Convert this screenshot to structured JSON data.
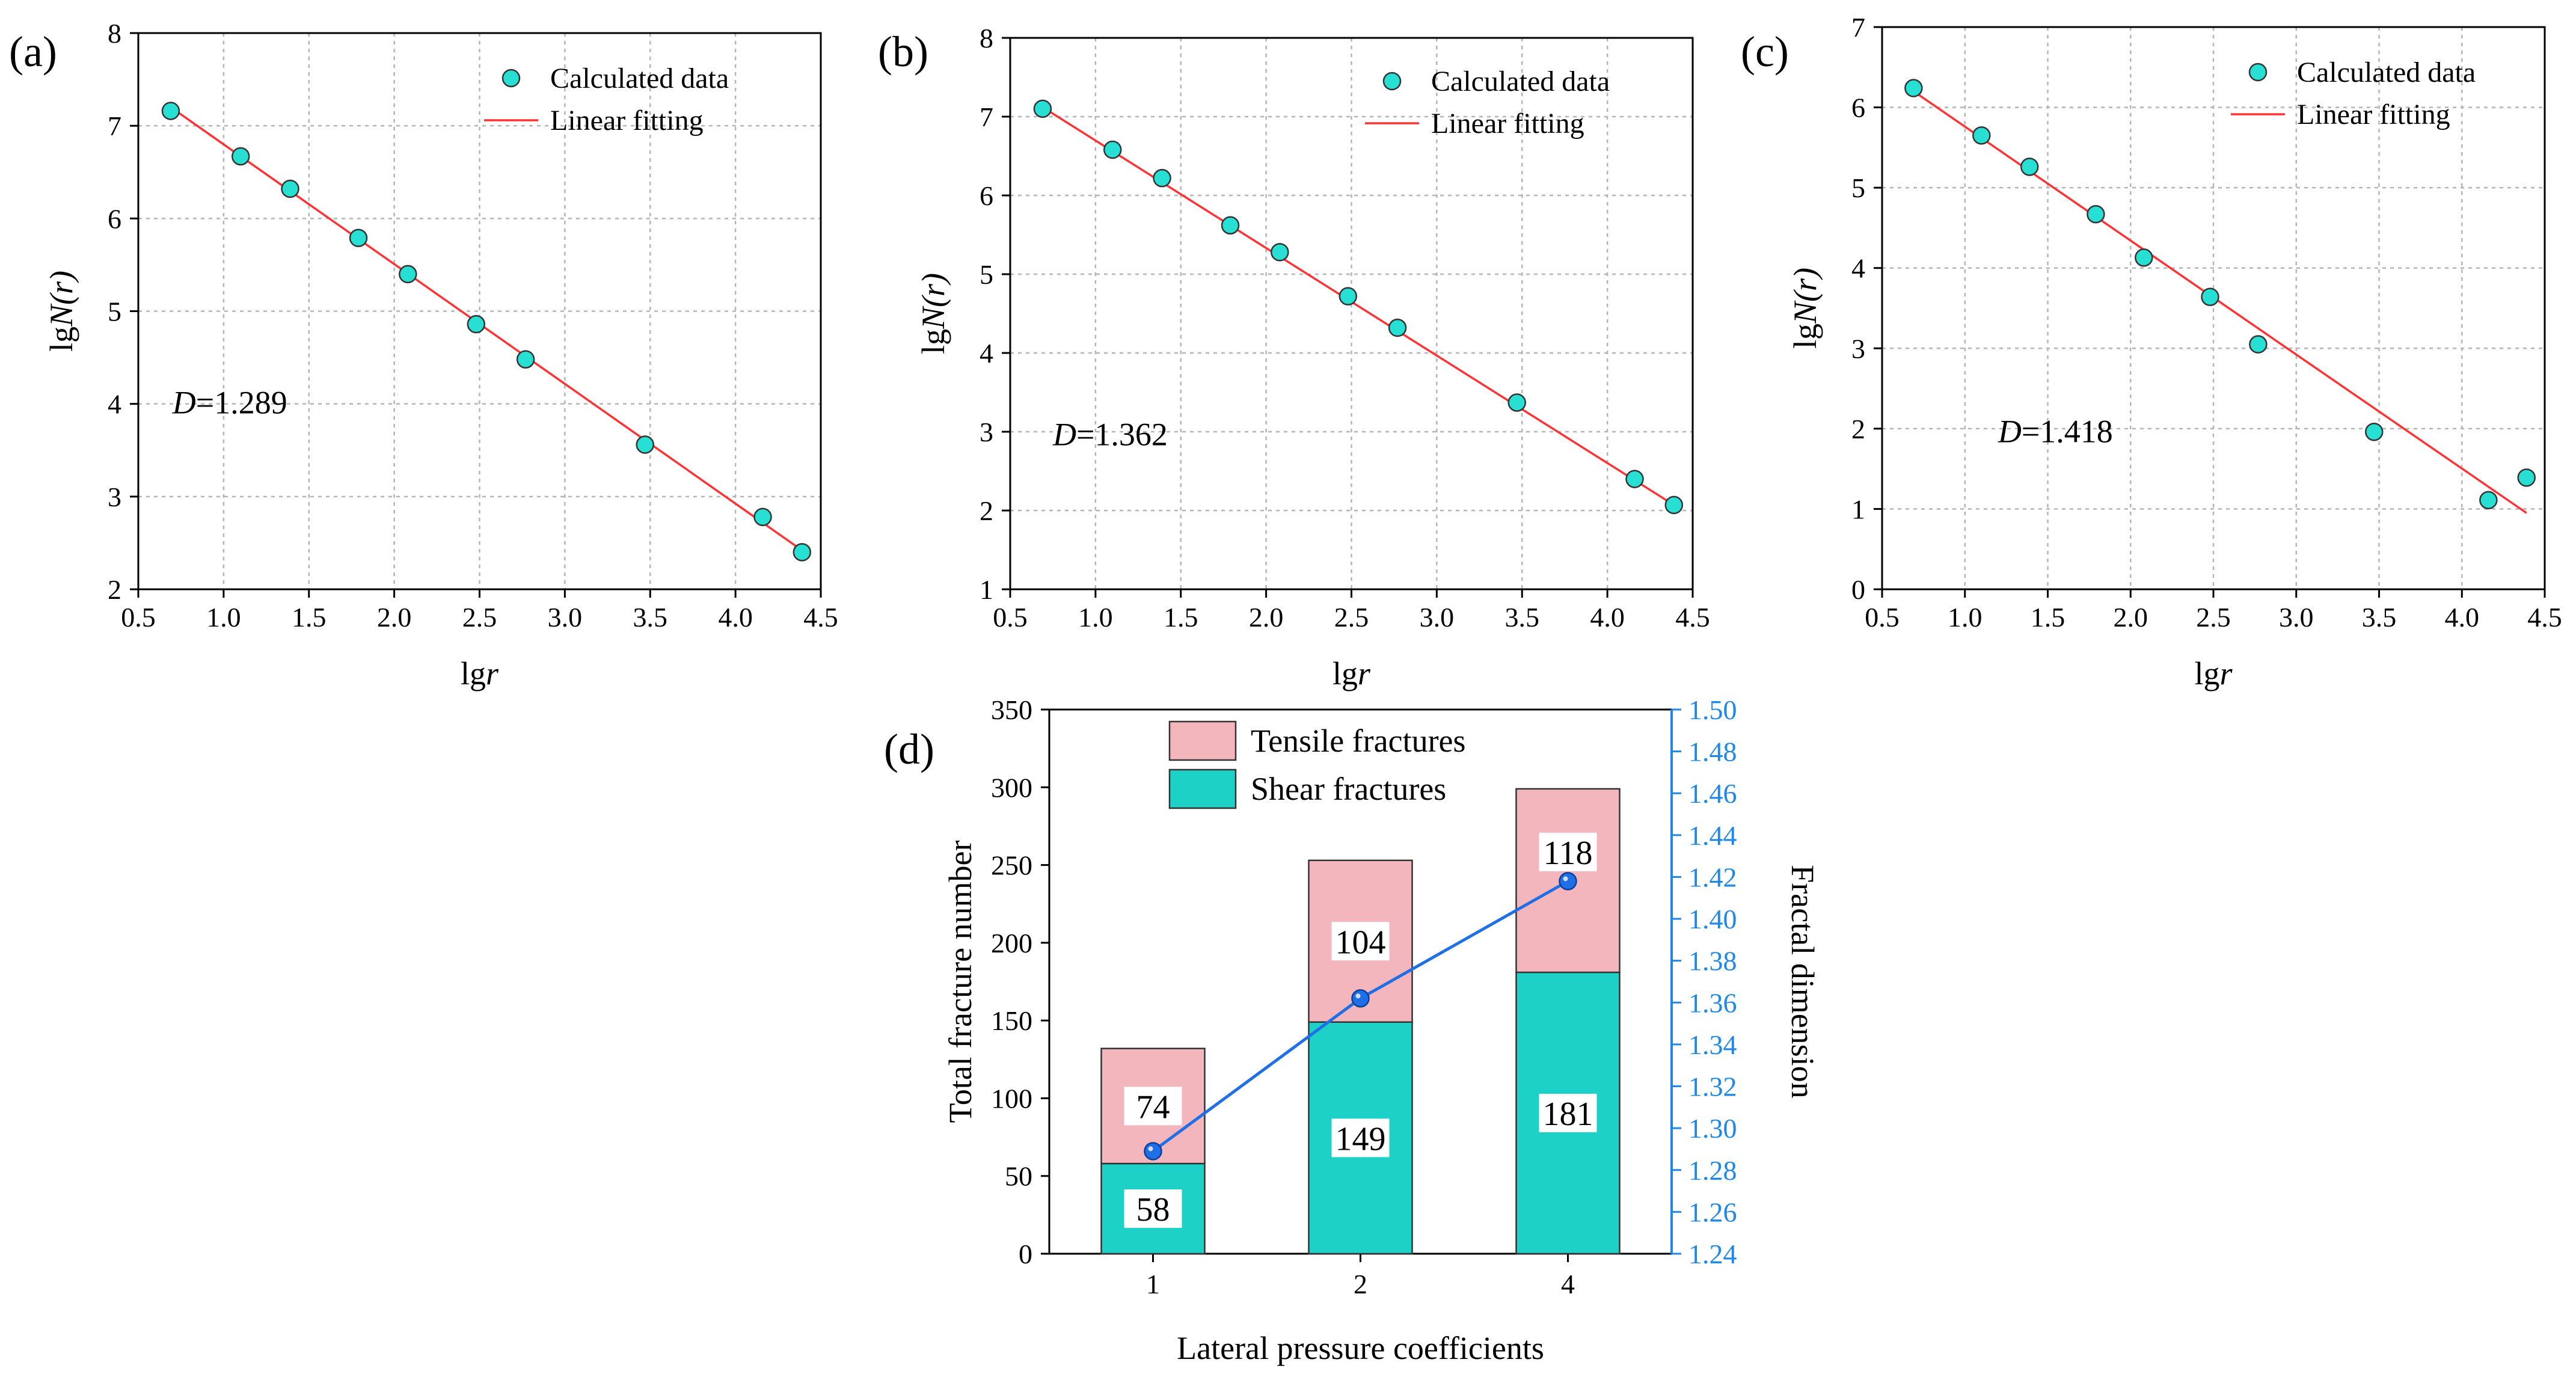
{
  "figure": {
    "panels": [
      "(a)",
      "(b)",
      "(c)",
      "(d)"
    ]
  },
  "colors": {
    "point_fill": "#27e0d3",
    "fit_line": "#ff3333",
    "tensile": "#f4b6bd",
    "shear": "#1ed1c6",
    "fractal_line": "#1f6fe6",
    "right_axis": "#1f87e6",
    "grid": "#b5b5b5"
  },
  "chart_data": [
    {
      "type": "scatter",
      "panel": "(a)",
      "xlabel_prefix": "lg",
      "xlabel_var": "r",
      "ylabel_prefix": "lg",
      "ylabel_var": "N(r)",
      "xlim": [
        0.5,
        4.5
      ],
      "ylim": [
        2,
        8
      ],
      "xticks": [
        "0.5",
        "1.0",
        "1.5",
        "2.0",
        "2.5",
        "3.0",
        "3.5",
        "4.0",
        "4.5"
      ],
      "yticks": [
        "2",
        "3",
        "4",
        "5",
        "6",
        "7",
        "8"
      ],
      "x": [
        0.69,
        1.1,
        1.39,
        1.79,
        2.08,
        2.48,
        2.77,
        3.47,
        4.16,
        4.39
      ],
      "y": [
        7.16,
        6.67,
        6.32,
        5.79,
        5.4,
        4.86,
        4.48,
        3.56,
        2.78,
        2.4
      ],
      "fit": {
        "x": [
          0.69,
          4.39
        ],
        "y": [
          7.2,
          2.42
        ]
      },
      "legend": {
        "points": "Calculated data",
        "line": "Linear fitting"
      },
      "annotation_var": "D",
      "annotation_value": "=1.289",
      "annotation_pos": [
        0.7,
        4.0
      ]
    },
    {
      "type": "scatter",
      "panel": "(b)",
      "xlabel_prefix": "lg",
      "xlabel_var": "r",
      "ylabel_prefix": "lg",
      "ylabel_var": "N(r)",
      "xlim": [
        0.5,
        4.5
      ],
      "ylim": [
        1,
        8
      ],
      "xticks": [
        "0.5",
        "1.0",
        "1.5",
        "2.0",
        "2.5",
        "3.0",
        "3.5",
        "4.0",
        "4.5"
      ],
      "yticks": [
        "1",
        "2",
        "3",
        "4",
        "5",
        "6",
        "7",
        "8"
      ],
      "x": [
        0.69,
        1.1,
        1.39,
        1.79,
        2.08,
        2.48,
        2.77,
        3.47,
        4.16,
        4.39
      ],
      "y": [
        7.1,
        6.58,
        6.22,
        5.62,
        5.28,
        4.72,
        4.32,
        3.37,
        2.4,
        2.07
      ],
      "fit": {
        "x": [
          0.69,
          4.39
        ],
        "y": [
          7.12,
          2.07
        ]
      },
      "legend": {
        "points": "Calculated data",
        "line": "Linear fitting"
      },
      "annotation_var": "D",
      "annotation_value": "=1.362",
      "annotation_pos": [
        0.75,
        2.95
      ]
    },
    {
      "type": "scatter",
      "panel": "(c)",
      "xlabel_prefix": "lg",
      "xlabel_var": "r",
      "ylabel_prefix": "lg",
      "ylabel_var": "N(r)",
      "xlim": [
        0.5,
        4.5
      ],
      "ylim": [
        0,
        7
      ],
      "xticks": [
        "0.5",
        "1.0",
        "1.5",
        "2.0",
        "2.5",
        "3.0",
        "3.5",
        "4.0",
        "4.5"
      ],
      "yticks": [
        "0",
        "1",
        "2",
        "3",
        "4",
        "5",
        "6",
        "7"
      ],
      "x": [
        0.69,
        1.1,
        1.39,
        1.79,
        2.08,
        2.48,
        2.77,
        3.47,
        4.16,
        4.39
      ],
      "y": [
        6.24,
        5.65,
        5.26,
        4.67,
        4.13,
        3.64,
        3.05,
        1.96,
        1.11,
        1.39
      ],
      "fit": {
        "x": [
          0.69,
          4.39
        ],
        "y": [
          6.2,
          0.95
        ]
      },
      "legend": {
        "points": "Calculated data",
        "line": "Linear fitting"
      },
      "annotation_var": "D",
      "annotation_value": "=1.418",
      "annotation_pos": [
        1.2,
        1.95
      ]
    },
    {
      "type": "bar",
      "panel": "(d)",
      "stacked": true,
      "categories": [
        "1",
        "2",
        "4"
      ],
      "series": [
        {
          "name": "Shear fractures",
          "values": [
            58,
            149,
            181
          ]
        },
        {
          "name": "Tensile fractures",
          "values": [
            74,
            104,
            118
          ]
        }
      ],
      "line_series": {
        "name": "Fractal dimension",
        "values": [
          1.289,
          1.362,
          1.418
        ]
      },
      "xlabel": "Lateral pressure coefficients",
      "ylabel": "Total fracture number",
      "y2label": "Fractal dimension",
      "ylim": [
        0,
        350
      ],
      "y2lim": [
        1.24,
        1.5
      ],
      "yticks": [
        "0",
        "50",
        "100",
        "150",
        "200",
        "250",
        "300",
        "350"
      ],
      "y2ticks": [
        "1.24",
        "1.26",
        "1.28",
        "1.30",
        "1.32",
        "1.34",
        "1.36",
        "1.38",
        "1.40",
        "1.42",
        "1.44",
        "1.46",
        "1.48",
        "1.50"
      ],
      "legend": [
        "Tensile fractures",
        "Shear fractures"
      ]
    }
  ]
}
